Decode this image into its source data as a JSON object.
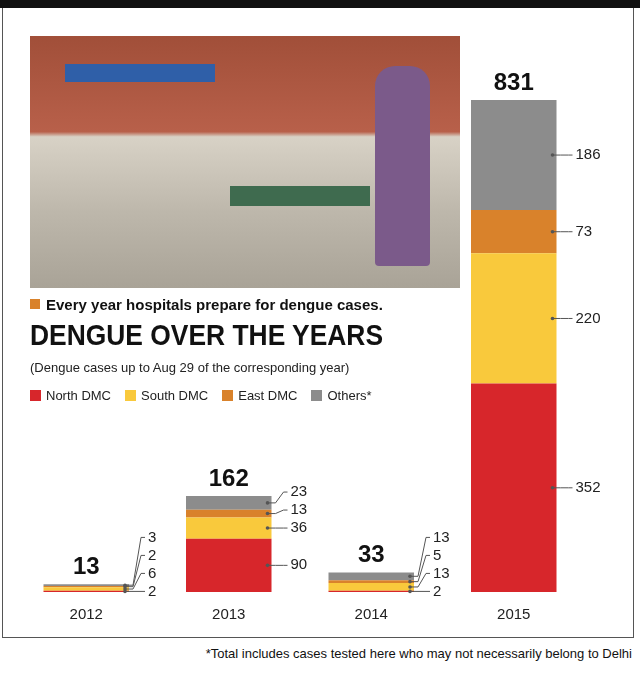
{
  "chart_data": {
    "type": "bar",
    "title": "DENGUE OVER THE YEARS",
    "subtitle": "(Dengue cases up to Aug 29 of the corresponding year)",
    "caption": "Every year hospitals prepare for dengue cases.",
    "footnote": "*Total includes cases tested here who may not necessarily belong to Delhi",
    "categories": [
      "2012",
      "2013",
      "2014",
      "2015"
    ],
    "series": [
      {
        "name": "North DMC",
        "color": "#d7262b",
        "values": [
          2,
          90,
          2,
          352
        ]
      },
      {
        "name": "South DMC",
        "color": "#f9c93c",
        "values": [
          6,
          36,
          13,
          220
        ]
      },
      {
        "name": "East DMC",
        "color": "#d9822b",
        "values": [
          2,
          13,
          5,
          73
        ]
      },
      {
        "name": "Others*",
        "color": "#8c8c8c",
        "values": [
          3,
          23,
          13,
          186
        ]
      }
    ],
    "totals": [
      13,
      162,
      33,
      831
    ],
    "ylim": [
      0,
      831
    ],
    "stacked": true,
    "data_labels": true,
    "legend": "top-left",
    "tick_labels": "x",
    "grid": false
  }
}
